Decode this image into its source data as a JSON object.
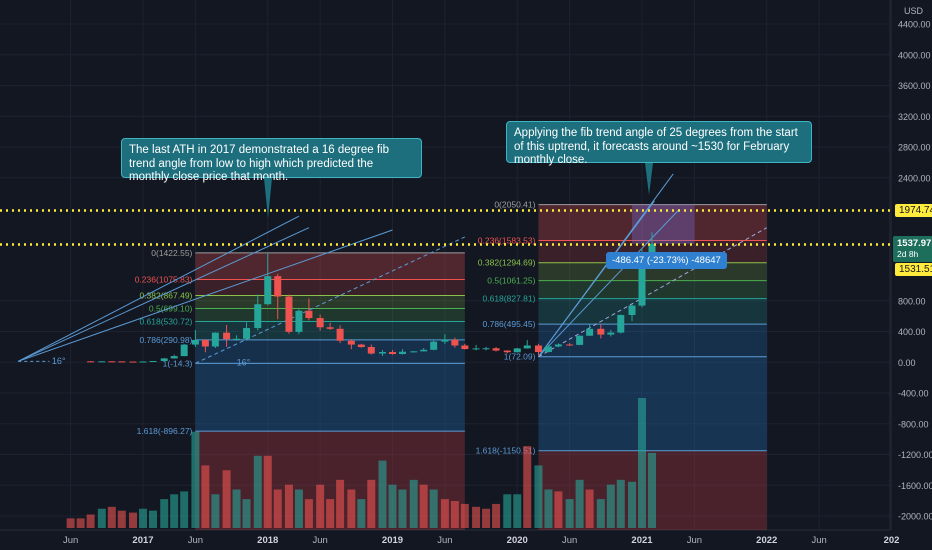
{
  "chart_data": {
    "type": "candlestick",
    "currency": "USD",
    "y_axis_ticks": [
      4400,
      4000,
      3600,
      3200,
      2800,
      2400,
      800,
      400,
      0,
      -400,
      -800,
      -1200,
      -1600,
      -2000
    ],
    "y_axis_tick_labels": [
      "4400.00",
      "4000.00",
      "3600.00",
      "3200.00",
      "2800.00",
      "2400.00",
      "800.00",
      "400.00",
      "0.00",
      "-400.00",
      "-800.00",
      "-1200.00",
      "-1600.00",
      "-2000.00"
    ],
    "ylim": [
      -2100,
      4600
    ],
    "x_axis_ticks": [
      {
        "label": "Jun",
        "year": 2016.42,
        "bold": false
      },
      {
        "label": "2017",
        "year": 2017.0,
        "bold": true
      },
      {
        "label": "Jun",
        "year": 2017.42,
        "bold": false
      },
      {
        "label": "2018",
        "year": 2018.0,
        "bold": true
      },
      {
        "label": "Jun",
        "year": 2018.42,
        "bold": false
      },
      {
        "label": "2019",
        "year": 2019.0,
        "bold": true
      },
      {
        "label": "Jun",
        "year": 2019.42,
        "bold": false
      },
      {
        "label": "2020",
        "year": 2020.0,
        "bold": true
      },
      {
        "label": "Jun",
        "year": 2020.42,
        "bold": false
      },
      {
        "label": "2021",
        "year": 2021.0,
        "bold": true
      },
      {
        "label": "Jun",
        "year": 2021.42,
        "bold": false
      },
      {
        "label": "2022",
        "year": 2022.0,
        "bold": true
      },
      {
        "label": "Jun",
        "year": 2022.42,
        "bold": false
      },
      {
        "label": "202",
        "year": 2023.0,
        "bold": true
      }
    ],
    "xlim": [
      2015.95,
      2023.05
    ],
    "candles": [
      {
        "t": 2016.58,
        "o": 12,
        "h": 14,
        "l": 7,
        "c": 11
      },
      {
        "t": 2016.67,
        "o": 11,
        "h": 13,
        "l": 8,
        "c": 12
      },
      {
        "t": 2016.75,
        "o": 12,
        "h": 14,
        "l": 10,
        "c": 11
      },
      {
        "t": 2016.83,
        "o": 11,
        "h": 12,
        "l": 9,
        "c": 9
      },
      {
        "t": 2016.92,
        "o": 9,
        "h": 10,
        "l": 7,
        "c": 8
      },
      {
        "t": 2017.0,
        "o": 8,
        "h": 12,
        "l": 8,
        "c": 10
      },
      {
        "t": 2017.08,
        "o": 10,
        "h": 17,
        "l": 10,
        "c": 16
      },
      {
        "t": 2017.17,
        "o": 16,
        "h": 55,
        "l": 15,
        "c": 50
      },
      {
        "t": 2017.25,
        "o": 50,
        "h": 98,
        "l": 47,
        "c": 80
      },
      {
        "t": 2017.33,
        "o": 80,
        "h": 240,
        "l": 78,
        "c": 230
      },
      {
        "t": 2017.42,
        "o": 230,
        "h": 420,
        "l": 200,
        "c": 290
      },
      {
        "t": 2017.5,
        "o": 290,
        "h": 300,
        "l": 130,
        "c": 205
      },
      {
        "t": 2017.58,
        "o": 205,
        "h": 390,
        "l": 185,
        "c": 385
      },
      {
        "t": 2017.67,
        "o": 385,
        "h": 485,
        "l": 200,
        "c": 300
      },
      {
        "t": 2017.75,
        "o": 300,
        "h": 350,
        "l": 280,
        "c": 305
      },
      {
        "t": 2017.83,
        "o": 305,
        "h": 520,
        "l": 290,
        "c": 445
      },
      {
        "t": 2017.92,
        "o": 445,
        "h": 880,
        "l": 415,
        "c": 755
      },
      {
        "t": 2018.0,
        "o": 755,
        "h": 1423,
        "l": 740,
        "c": 1120
      },
      {
        "t": 2018.08,
        "o": 1120,
        "h": 1150,
        "l": 560,
        "c": 855
      },
      {
        "t": 2018.17,
        "o": 855,
        "h": 880,
        "l": 370,
        "c": 395
      },
      {
        "t": 2018.25,
        "o": 395,
        "h": 690,
        "l": 365,
        "c": 670
      },
      {
        "t": 2018.33,
        "o": 670,
        "h": 830,
        "l": 545,
        "c": 575
      },
      {
        "t": 2018.42,
        "o": 575,
        "h": 620,
        "l": 410,
        "c": 455
      },
      {
        "t": 2018.5,
        "o": 455,
        "h": 515,
        "l": 420,
        "c": 435
      },
      {
        "t": 2018.58,
        "o": 435,
        "h": 480,
        "l": 250,
        "c": 280
      },
      {
        "t": 2018.67,
        "o": 280,
        "h": 300,
        "l": 170,
        "c": 230
      },
      {
        "t": 2018.75,
        "o": 230,
        "h": 240,
        "l": 190,
        "c": 198
      },
      {
        "t": 2018.83,
        "o": 198,
        "h": 230,
        "l": 100,
        "c": 113
      },
      {
        "t": 2018.92,
        "o": 113,
        "h": 160,
        "l": 82,
        "c": 133
      },
      {
        "t": 2019.0,
        "o": 133,
        "h": 160,
        "l": 100,
        "c": 107
      },
      {
        "t": 2019.08,
        "o": 107,
        "h": 170,
        "l": 100,
        "c": 137
      },
      {
        "t": 2019.17,
        "o": 137,
        "h": 145,
        "l": 125,
        "c": 142
      },
      {
        "t": 2019.25,
        "o": 142,
        "h": 185,
        "l": 140,
        "c": 162
      },
      {
        "t": 2019.33,
        "o": 162,
        "h": 290,
        "l": 155,
        "c": 268
      },
      {
        "t": 2019.42,
        "o": 268,
        "h": 365,
        "l": 235,
        "c": 293
      },
      {
        "t": 2019.5,
        "o": 293,
        "h": 320,
        "l": 190,
        "c": 218
      },
      {
        "t": 2019.58,
        "o": 218,
        "h": 240,
        "l": 165,
        "c": 172
      },
      {
        "t": 2019.67,
        "o": 172,
        "h": 225,
        "l": 155,
        "c": 180
      },
      {
        "t": 2019.75,
        "o": 180,
        "h": 200,
        "l": 155,
        "c": 182
      },
      {
        "t": 2019.83,
        "o": 182,
        "h": 197,
        "l": 140,
        "c": 152
      },
      {
        "t": 2019.92,
        "o": 152,
        "h": 155,
        "l": 117,
        "c": 130
      },
      {
        "t": 2020.0,
        "o": 130,
        "h": 185,
        "l": 127,
        "c": 180
      },
      {
        "t": 2020.08,
        "o": 180,
        "h": 288,
        "l": 178,
        "c": 218
      },
      {
        "t": 2020.17,
        "o": 218,
        "h": 240,
        "l": 90,
        "c": 133
      },
      {
        "t": 2020.25,
        "o": 133,
        "h": 227,
        "l": 130,
        "c": 206
      },
      {
        "t": 2020.33,
        "o": 206,
        "h": 245,
        "l": 195,
        "c": 231
      },
      {
        "t": 2020.42,
        "o": 231,
        "h": 250,
        "l": 215,
        "c": 226
      },
      {
        "t": 2020.5,
        "o": 226,
        "h": 350,
        "l": 222,
        "c": 345
      },
      {
        "t": 2020.58,
        "o": 345,
        "h": 490,
        "l": 345,
        "c": 435
      },
      {
        "t": 2020.67,
        "o": 435,
        "h": 490,
        "l": 310,
        "c": 360
      },
      {
        "t": 2020.75,
        "o": 360,
        "h": 420,
        "l": 335,
        "c": 386
      },
      {
        "t": 2020.83,
        "o": 386,
        "h": 620,
        "l": 375,
        "c": 615
      },
      {
        "t": 2020.92,
        "o": 615,
        "h": 755,
        "l": 535,
        "c": 737
      },
      {
        "t": 2021.0,
        "o": 737,
        "h": 1475,
        "l": 714,
        "c": 1314
      },
      {
        "t": 2021.08,
        "o": 1314,
        "h": 1690,
        "l": 1300,
        "c": 1540
      }
    ],
    "volume": [
      {
        "t": 2016.42,
        "v": 10,
        "up": false
      },
      {
        "t": 2016.5,
        "v": 10,
        "up": false
      },
      {
        "t": 2016.58,
        "v": 14,
        "up": false
      },
      {
        "t": 2016.67,
        "v": 20,
        "up": true
      },
      {
        "t": 2016.75,
        "v": 22,
        "up": false
      },
      {
        "t": 2016.83,
        "v": 18,
        "up": false
      },
      {
        "t": 2016.92,
        "v": 16,
        "up": false
      },
      {
        "t": 2017.0,
        "v": 20,
        "up": true
      },
      {
        "t": 2017.08,
        "v": 18,
        "up": true
      },
      {
        "t": 2017.17,
        "v": 30,
        "up": true
      },
      {
        "t": 2017.25,
        "v": 35,
        "up": true
      },
      {
        "t": 2017.33,
        "v": 38,
        "up": true
      },
      {
        "t": 2017.42,
        "v": 100,
        "up": true
      },
      {
        "t": 2017.5,
        "v": 65,
        "up": false
      },
      {
        "t": 2017.58,
        "v": 35,
        "up": true
      },
      {
        "t": 2017.67,
        "v": 60,
        "up": false
      },
      {
        "t": 2017.75,
        "v": 40,
        "up": true
      },
      {
        "t": 2017.83,
        "v": 30,
        "up": true
      },
      {
        "t": 2017.92,
        "v": 75,
        "up": true
      },
      {
        "t": 2018.0,
        "v": 75,
        "up": false
      },
      {
        "t": 2018.08,
        "v": 40,
        "up": false
      },
      {
        "t": 2018.17,
        "v": 45,
        "up": false
      },
      {
        "t": 2018.25,
        "v": 40,
        "up": true
      },
      {
        "t": 2018.33,
        "v": 30,
        "up": false
      },
      {
        "t": 2018.42,
        "v": 45,
        "up": false
      },
      {
        "t": 2018.5,
        "v": 30,
        "up": false
      },
      {
        "t": 2018.58,
        "v": 50,
        "up": false
      },
      {
        "t": 2018.67,
        "v": 40,
        "up": false
      },
      {
        "t": 2018.75,
        "v": 30,
        "up": true
      },
      {
        "t": 2018.83,
        "v": 50,
        "up": false
      },
      {
        "t": 2018.92,
        "v": 70,
        "up": true
      },
      {
        "t": 2019.0,
        "v": 45,
        "up": true
      },
      {
        "t": 2019.08,
        "v": 40,
        "up": true
      },
      {
        "t": 2019.17,
        "v": 50,
        "up": true
      },
      {
        "t": 2019.25,
        "v": 45,
        "up": false
      },
      {
        "t": 2019.33,
        "v": 40,
        "up": true
      },
      {
        "t": 2019.42,
        "v": 30,
        "up": false
      },
      {
        "t": 2019.5,
        "v": 28,
        "up": false
      },
      {
        "t": 2019.58,
        "v": 25,
        "up": false
      },
      {
        "t": 2019.67,
        "v": 22,
        "up": false
      },
      {
        "t": 2019.75,
        "v": 20,
        "up": false
      },
      {
        "t": 2019.83,
        "v": 25,
        "up": false
      },
      {
        "t": 2019.92,
        "v": 35,
        "up": true
      },
      {
        "t": 2020.0,
        "v": 35,
        "up": true
      },
      {
        "t": 2020.08,
        "v": 85,
        "up": false
      },
      {
        "t": 2020.17,
        "v": 65,
        "up": true
      },
      {
        "t": 2020.25,
        "v": 40,
        "up": true
      },
      {
        "t": 2020.33,
        "v": 38,
        "up": false
      },
      {
        "t": 2020.42,
        "v": 30,
        "up": true
      },
      {
        "t": 2020.5,
        "v": 50,
        "up": true
      },
      {
        "t": 2020.58,
        "v": 40,
        "up": false
      },
      {
        "t": 2020.67,
        "v": 30,
        "up": true
      },
      {
        "t": 2020.75,
        "v": 45,
        "up": true
      },
      {
        "t": 2020.83,
        "v": 50,
        "up": true
      },
      {
        "t": 2020.92,
        "v": 48,
        "up": true
      },
      {
        "t": 2021.0,
        "v": 135,
        "up": true
      },
      {
        "t": 2021.08,
        "v": 78,
        "up": true
      }
    ],
    "fib_retracement_2017": {
      "start": 2017.42,
      "end": 2019.58,
      "levels": [
        {
          "ratio": "0",
          "label": "0(1422.55)",
          "value": 1422.55
        },
        {
          "ratio": "0.236",
          "label": "0.236(1075.83)",
          "value": 1075.83
        },
        {
          "ratio": "0.382",
          "label": "0.382(867.49)",
          "value": 867.49
        },
        {
          "ratio": "0.5",
          "label": "0.5(699.10)",
          "value": 699.1
        },
        {
          "ratio": "0.618",
          "label": "0.618(530.72)",
          "value": 530.72
        },
        {
          "ratio": "0.786",
          "label": "0.786(290.98)",
          "value": 290.98
        },
        {
          "ratio": "1",
          "label": "1(-14.3)",
          "value": -14.3
        },
        {
          "ratio": "1.618",
          "label": "1.618(-896.27)",
          "value": -896.27
        }
      ]
    },
    "fib_retracement_2021": {
      "start": 2020.17,
      "end": 2022.0,
      "levels": [
        {
          "ratio": "0",
          "label": "0(2050.41)",
          "value": 2050.41
        },
        {
          "ratio": "0.236",
          "label": "0.236(1583.53)",
          "value": 1583.53
        },
        {
          "ratio": "0.382",
          "label": "0.382(1294.69)",
          "value": 1294.69
        },
        {
          "ratio": "0.5",
          "label": "0.5(1061.25)",
          "value": 1061.25
        },
        {
          "ratio": "0.618",
          "label": "0.618(827.81)",
          "value": 827.81
        },
        {
          "ratio": "0.786",
          "label": "0.786(495.45)",
          "value": 495.45
        },
        {
          "ratio": "1",
          "label": "1(72.09)",
          "value": 72.09
        },
        {
          "ratio": "1.618",
          "label": "1.618(-1150.51)",
          "value": -1150.51
        }
      ]
    },
    "horizontal_lines": [
      {
        "value": 1974.74,
        "label": "1974.74"
      },
      {
        "value": 1531.51,
        "label": "1531.51"
      }
    ],
    "current_price": {
      "value": 1537.97,
      "label": "1537.97",
      "countdown": "2d 8h"
    },
    "trend_angle_labels": [
      "16°",
      "16°"
    ],
    "annotations": [
      {
        "id": "note-2017",
        "text": "The last ATH in 2017 demonstrated a 16 degree fib trend angle from low to high which predicted the monthly close price that month."
      },
      {
        "id": "note-2021",
        "text": "Applying the fib trend angle of 25 degrees from the start of this uptrend, it forecasts around ~1530 for February monthly close."
      }
    ],
    "measure_label": "-486.47 (-23.73%) -48647"
  },
  "colors": {
    "background": "#131722",
    "grid": "#1e2230",
    "up": "#26a69a",
    "down": "#ef5350",
    "fib_line": "#5b9bd5",
    "dotted_line": "#ffeb3b",
    "callout_bg": "#1d6f7e",
    "axis_text": "#b2b5be"
  }
}
